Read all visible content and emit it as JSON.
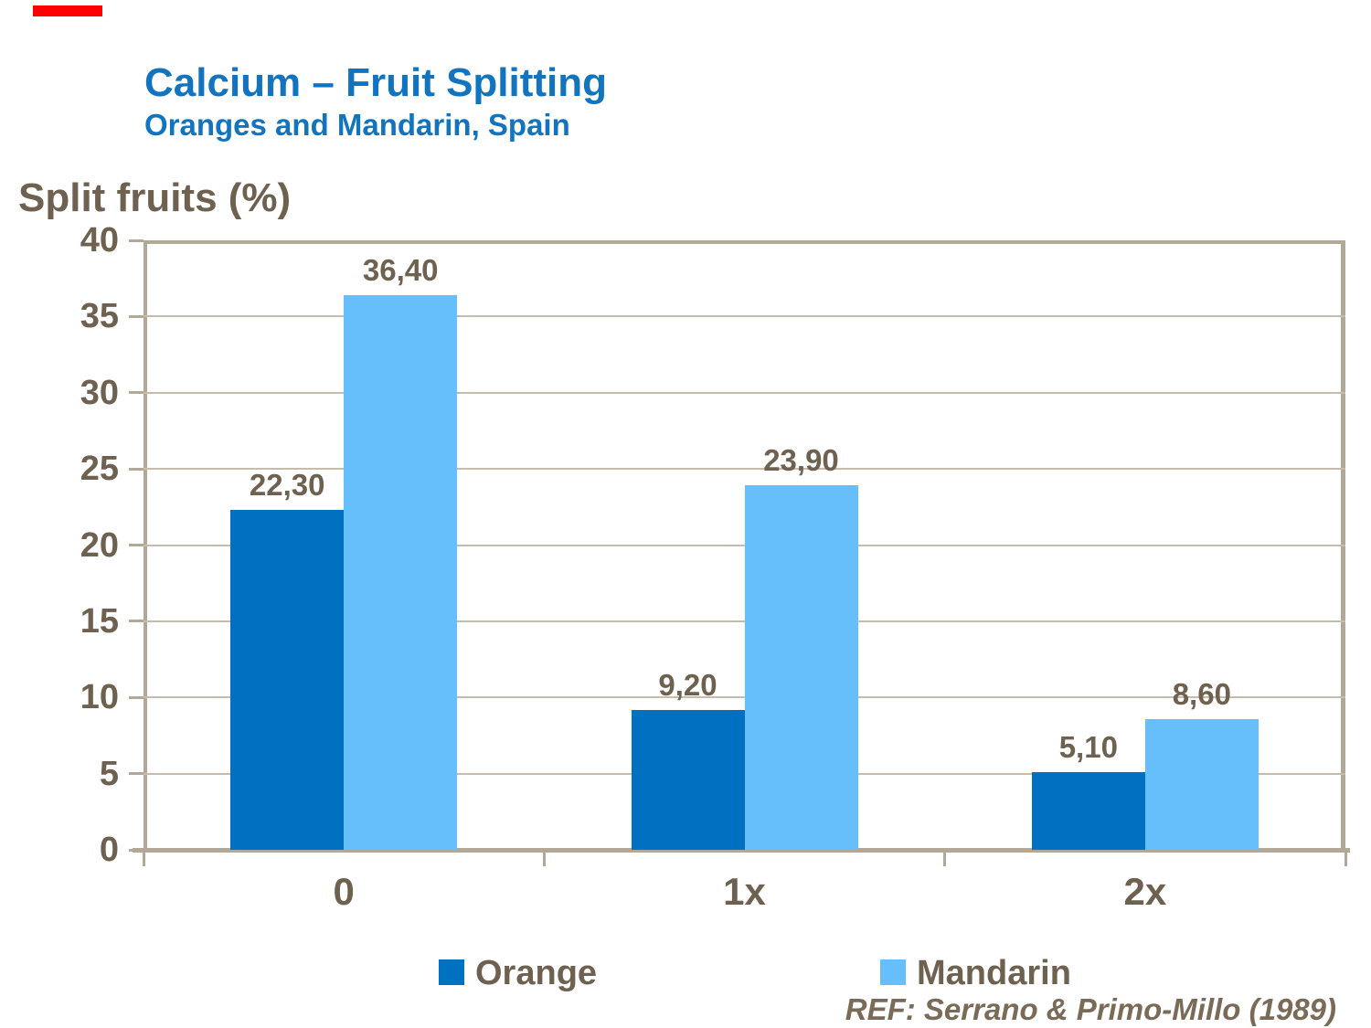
{
  "accent_bar": {
    "color": "#FF0000"
  },
  "header": {
    "title": "Calcium – Fruit Splitting",
    "subtitle": "Oranges and Mandarin, Spain",
    "color": "#1274BF"
  },
  "y_axis_title": "Split fruits (%)",
  "ref_note": "REF: Serrano & Primo-Millo (1989)",
  "colors": {
    "text_brown": "#6E6150",
    "axis_line": "#B2A898",
    "gridline": "#C5BCAE",
    "orange_series": "#0070C0",
    "mandarin_series": "#66BFFB"
  },
  "legend": {
    "position": "bottom",
    "items": [
      {
        "label": "Orange",
        "color": "#0070C0"
      },
      {
        "label": "Mandarin",
        "color": "#66BFFB"
      }
    ]
  },
  "chart_data": {
    "type": "bar",
    "title": "Calcium – Fruit Splitting",
    "subtitle": "Oranges and Mandarin, Spain",
    "categories": [
      "0",
      "1x",
      "2x"
    ],
    "series": [
      {
        "name": "Orange",
        "color": "#0070C0",
        "values": [
          22.3,
          9.2,
          5.1
        ],
        "value_labels": [
          "22,30",
          "9,20",
          "5,10"
        ]
      },
      {
        "name": "Mandarin",
        "color": "#66BFFB",
        "values": [
          36.4,
          23.9,
          8.6
        ],
        "value_labels": [
          "36,40",
          "23,90",
          "8,60"
        ]
      }
    ],
    "xlabel": "",
    "ylabel": "Split fruits (%)",
    "ylim": [
      0,
      40
    ],
    "yticks": [
      0,
      5,
      10,
      15,
      20,
      25,
      30,
      35,
      40
    ],
    "grid": true,
    "legend_position": "bottom"
  }
}
